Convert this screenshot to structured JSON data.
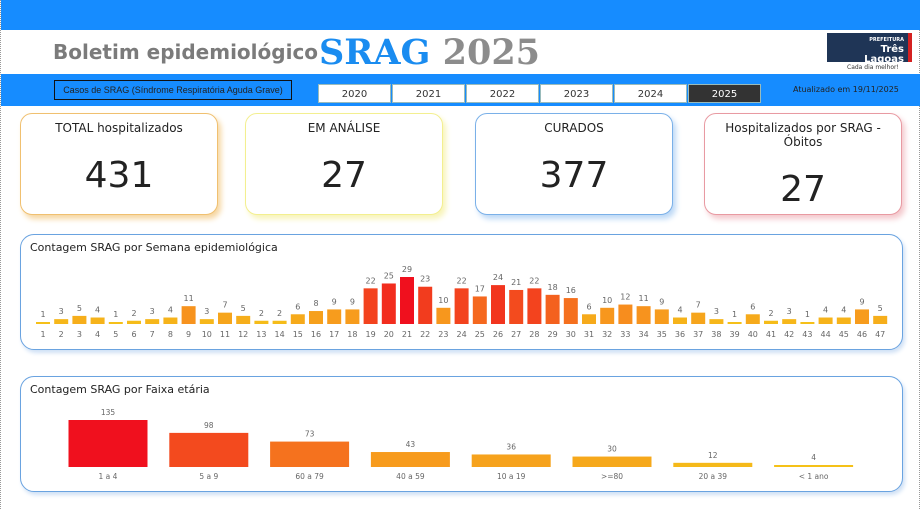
{
  "header": {
    "title": "Boletim epidemiológico",
    "srag": "SRAG",
    "year": "2025",
    "logo_top": "PREFEITURA",
    "logo_name1": "Três",
    "logo_name2": "Lagoas",
    "slogan": "Cada dia melhor!"
  },
  "filter": {
    "subtitle": "Casos de SRAG (Síndrome Respiratória Aguda Grave)",
    "years": [
      "2020",
      "2021",
      "2022",
      "2023",
      "2024",
      "2025"
    ],
    "selected": "2025",
    "updated": "Atualizado em 19/11/2025"
  },
  "cards": [
    {
      "label": "TOTAL hospitalizados",
      "value": "431"
    },
    {
      "label": "EM ANÁLISE",
      "value": "27"
    },
    {
      "label": "CURADOS",
      "value": "377"
    },
    {
      "label": "Hospitalizados por SRAG - Óbitos",
      "value": "27"
    }
  ],
  "chart_data": [
    {
      "type": "bar",
      "title": "Contagem SRAG por Semana epidemiológica",
      "categories": [
        "1",
        "2",
        "3",
        "4",
        "5",
        "6",
        "7",
        "8",
        "9",
        "10",
        "11",
        "12",
        "13",
        "14",
        "15",
        "16",
        "17",
        "18",
        "19",
        "20",
        "21",
        "22",
        "23",
        "24",
        "25",
        "26",
        "27",
        "28",
        "29",
        "30",
        "31",
        "32",
        "33",
        "34",
        "35",
        "36",
        "37",
        "38",
        "39",
        "40",
        "41",
        "42",
        "43",
        "44",
        "45",
        "46",
        "47"
      ],
      "values": [
        1,
        3,
        5,
        4,
        1,
        2,
        3,
        4,
        11,
        3,
        7,
        5,
        2,
        2,
        6,
        8,
        9,
        9,
        22,
        25,
        29,
        23,
        10,
        22,
        17,
        24,
        21,
        22,
        18,
        16,
        6,
        10,
        12,
        11,
        9,
        4,
        7,
        3,
        1,
        6,
        2,
        3,
        1,
        4,
        4,
        9,
        5
      ]
    },
    {
      "type": "bar",
      "title": "Contagem SRAG por Faixa etária",
      "categories": [
        "1 a 4",
        "5 a 9",
        "60 a 79",
        "40 a 59",
        "10 a 19",
        ">=80",
        "20 a 39",
        "< 1 ano"
      ],
      "values": [
        135,
        98,
        73,
        43,
        36,
        30,
        12,
        4
      ]
    }
  ]
}
